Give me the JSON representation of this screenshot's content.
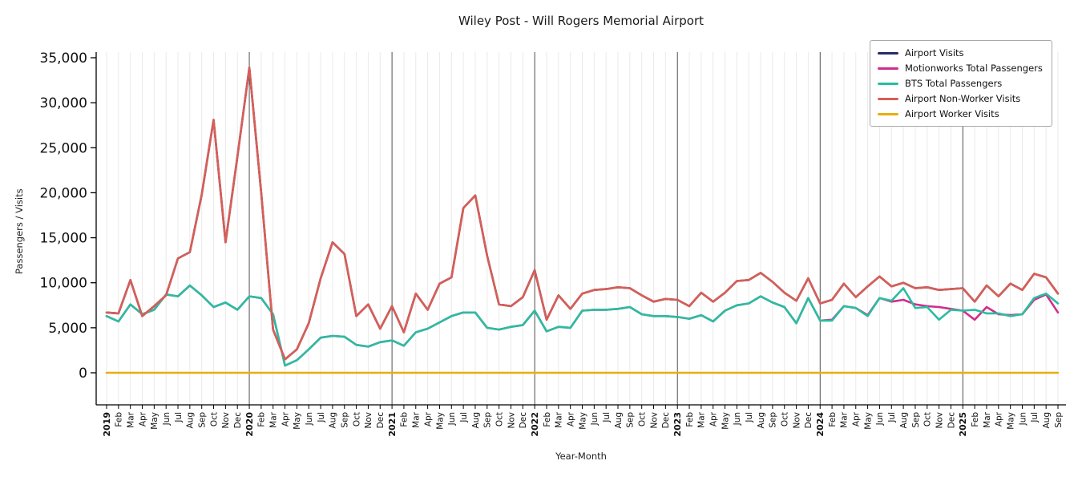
{
  "title": "Wiley Post - Will Rogers Memorial Airport",
  "chart_data": {
    "type": "line",
    "title": "Wiley Post - Will Rogers Memorial Airport",
    "xlabel": "Year-Month",
    "ylabel": "Passengers / Visits",
    "ylim": [
      0,
      35000
    ],
    "grid": "vertical-monthly",
    "legend_position": "top-right",
    "ytick_values": [
      0,
      5000,
      10000,
      15000,
      20000,
      25000,
      30000,
      35000
    ],
    "ytick_labels": [
      "0",
      "5,000",
      "10,000",
      "15,000",
      "20,000",
      "25,000",
      "30,000",
      "35,000"
    ],
    "x_tick_labels": [
      "2019",
      "Feb",
      "Mar",
      "Apr",
      "May",
      "Jun",
      "Jul",
      "Aug",
      "Sep",
      "Oct",
      "Nov",
      "Dec",
      "2020",
      "Feb",
      "Mar",
      "Apr",
      "May",
      "Jun",
      "Jul",
      "Aug",
      "Sep",
      "Oct",
      "Nov",
      "Dec",
      "2021",
      "Feb",
      "Mar",
      "Apr",
      "May",
      "Jun",
      "Jul",
      "Aug",
      "Sep",
      "Oct",
      "Nov",
      "Dec",
      "2022",
      "Feb",
      "Mar",
      "Apr",
      "May",
      "Jun",
      "Jul",
      "Aug",
      "Sep",
      "Oct",
      "Nov",
      "Dec",
      "2023",
      "Feb",
      "Mar",
      "Apr",
      "May",
      "Jun",
      "Jul",
      "Aug",
      "Sep",
      "Oct",
      "Nov",
      "Dec",
      "2024",
      "Feb",
      "Mar",
      "Apr",
      "May",
      "Jun",
      "Jul",
      "Aug",
      "Sep",
      "Oct",
      "Nov",
      "Dec",
      "2025",
      "Feb",
      "Mar",
      "Apr",
      "May",
      "Jun",
      "Jul",
      "Aug",
      "Sep"
    ],
    "series": [
      {
        "name": "Airport Visits",
        "color": "#272c66",
        "values": [
          6700,
          6600,
          10300,
          6300,
          7400,
          8600,
          12700,
          13400,
          19800,
          28100,
          14500,
          24000,
          33900,
          20000,
          4800,
          1500,
          2600,
          5500,
          10500,
          14500,
          13200,
          6300,
          7600,
          4900,
          7400,
          4500,
          8800,
          7000,
          9900,
          10600,
          18300,
          19700,
          13000,
          7600,
          7400,
          8400,
          11400,
          5900,
          8600,
          7100,
          8800,
          9200,
          9300,
          9500,
          9400,
          8600,
          7900,
          8200,
          8100,
          7400,
          8900,
          7900,
          8900,
          10200,
          10300,
          11100,
          10100,
          8900,
          8000,
          10500,
          7700,
          8100,
          9900,
          8400,
          9600,
          10700,
          9600,
          10000,
          9400,
          9500,
          9200,
          9300,
          9400,
          7900,
          9700,
          8500,
          9900,
          9200,
          11000,
          10600,
          8800
        ]
      },
      {
        "name": "Motionworks Total Passengers",
        "color": "#d12d8d",
        "values": [
          6300,
          5700,
          7600,
          6500,
          7000,
          8700,
          8500,
          9700,
          8600,
          7300,
          7800,
          7000,
          8500,
          8300,
          6500,
          800,
          1400,
          2600,
          3900,
          4100,
          4000,
          3100,
          2900,
          3400,
          3600,
          3000,
          4500,
          4900,
          5600,
          6300,
          6700,
          6700,
          5000,
          4800,
          5100,
          5300,
          6900,
          4600,
          5100,
          5000,
          6900,
          7000,
          7000,
          7100,
          7300,
          6500,
          6300,
          6300,
          6200,
          6000,
          6400,
          5700,
          6900,
          7500,
          7700,
          8500,
          7800,
          7300,
          5500,
          8300,
          5800,
          5900,
          7400,
          7200,
          6400,
          8300,
          7900,
          8100,
          7600,
          7400,
          7300,
          7100,
          6900,
          5900,
          7300,
          6500,
          6400,
          6500,
          8100,
          8700,
          6700
        ]
      },
      {
        "name": "BTS Total Passengers",
        "color": "#2abda1",
        "values": [
          6300,
          5700,
          7600,
          6500,
          7000,
          8700,
          8500,
          9700,
          8600,
          7300,
          7800,
          7000,
          8500,
          8300,
          6500,
          800,
          1400,
          2600,
          3900,
          4100,
          4000,
          3100,
          2900,
          3400,
          3600,
          3000,
          4500,
          4900,
          5600,
          6300,
          6700,
          6700,
          5000,
          4800,
          5100,
          5300,
          6900,
          4600,
          5100,
          5000,
          6900,
          7000,
          7000,
          7100,
          7300,
          6500,
          6300,
          6300,
          6200,
          6000,
          6400,
          5700,
          6900,
          7500,
          7700,
          8500,
          7800,
          7300,
          5500,
          8300,
          5800,
          5800,
          7400,
          7200,
          6300,
          8300,
          8000,
          9400,
          7200,
          7300,
          5900,
          7000,
          6900,
          7000,
          6600,
          6600,
          6300,
          6500,
          8300,
          8800,
          7700
        ]
      },
      {
        "name": "Airport Non-Worker Visits",
        "color": "#d85e57",
        "values": [
          6700,
          6600,
          10300,
          6300,
          7400,
          8600,
          12700,
          13400,
          19800,
          28100,
          14500,
          24000,
          33900,
          20000,
          4800,
          1500,
          2600,
          5500,
          10500,
          14500,
          13200,
          6300,
          7600,
          4900,
          7400,
          4500,
          8800,
          7000,
          9900,
          10600,
          18300,
          19700,
          13000,
          7600,
          7400,
          8400,
          11400,
          5900,
          8600,
          7100,
          8800,
          9200,
          9300,
          9500,
          9400,
          8600,
          7900,
          8200,
          8100,
          7400,
          8900,
          7900,
          8900,
          10200,
          10300,
          11100,
          10100,
          8900,
          8000,
          10500,
          7700,
          8100,
          9900,
          8400,
          9600,
          10700,
          9600,
          10000,
          9400,
          9500,
          9200,
          9300,
          9400,
          7900,
          9700,
          8500,
          9900,
          9200,
          11000,
          10600,
          8800
        ]
      },
      {
        "name": "Airport Worker Visits",
        "color": "#e8ae0c",
        "values": [
          0,
          0,
          0,
          0,
          0,
          0,
          0,
          0,
          0,
          0,
          0,
          0,
          0,
          0,
          0,
          0,
          0,
          0,
          0,
          0,
          0,
          0,
          0,
          0,
          0,
          0,
          0,
          0,
          0,
          0,
          0,
          0,
          0,
          0,
          0,
          0,
          0,
          0,
          0,
          0,
          0,
          0,
          0,
          0,
          0,
          0,
          0,
          0,
          0,
          0,
          0,
          0,
          0,
          0,
          0,
          0,
          0,
          0,
          0,
          0,
          0,
          0,
          0,
          0,
          0,
          0,
          0,
          0,
          0,
          0,
          0,
          0,
          0,
          0,
          0,
          0,
          0,
          0,
          0,
          0,
          0
        ]
      }
    ]
  }
}
